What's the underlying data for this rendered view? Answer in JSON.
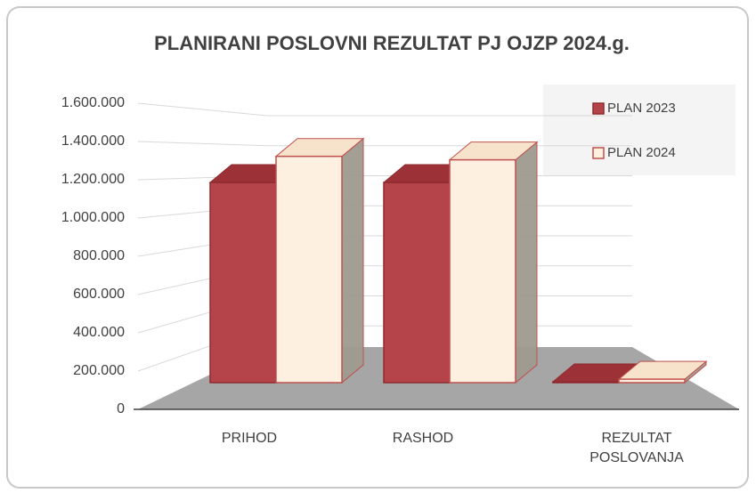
{
  "chart_data": {
    "type": "bar3d",
    "title": "PLANIRANI POSLOVNI REZULTAT PJ OJZP 2024.g.",
    "categories": [
      "PRIHOD",
      "RASHOD",
      "REZULTAT POSLOVANJA"
    ],
    "series": [
      {
        "name": "PLAN 2023",
        "color": "#b5434a",
        "values": [
          1150000,
          1150000,
          5000
        ]
      },
      {
        "name": "PLAN 2024",
        "color": "#fdf0e0",
        "values": [
          1300000,
          1280000,
          20000
        ]
      }
    ],
    "ylim": [
      0,
      1600000
    ],
    "yticks": [
      0,
      {
        "value": 200000,
        "label": "200.000"
      },
      {
        "value": 400000,
        "label": "400.000"
      },
      {
        "value": 600000,
        "label": "600.000"
      },
      {
        "value": 800000,
        "label": "800.000"
      },
      {
        "value": 1000000,
        "label": "1.000.000"
      },
      {
        "value": 1200000,
        "label": "1.200.000"
      },
      {
        "value": 1400000,
        "label": "1.400.000"
      },
      {
        "value": 1600000,
        "label": "1.600.000"
      }
    ],
    "grid": true,
    "legend": "top-right"
  }
}
